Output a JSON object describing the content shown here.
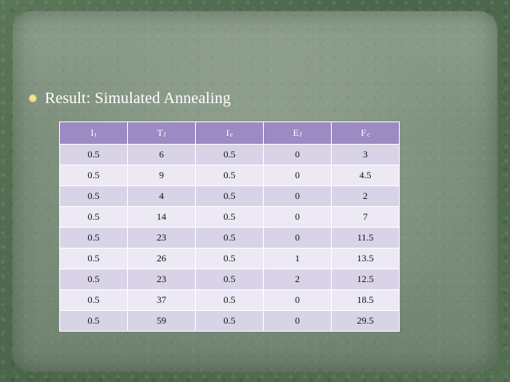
{
  "slide": {
    "title": "Result: Simulated Annealing"
  },
  "table": {
    "columns": [
      {
        "main": "I",
        "sub": "t"
      },
      {
        "main": "T",
        "sub": "f"
      },
      {
        "main": "I",
        "sub": "e"
      },
      {
        "main": "E",
        "sub": "f"
      },
      {
        "main": "F",
        "sub": "c"
      }
    ],
    "rows": [
      [
        "0.5",
        "6",
        "0.5",
        "0",
        "3"
      ],
      [
        "0.5",
        "9",
        "0.5",
        "0",
        "4.5"
      ],
      [
        "0.5",
        "4",
        "0.5",
        "0",
        "2"
      ],
      [
        "0.5",
        "14",
        "0.5",
        "0",
        "7"
      ],
      [
        "0.5",
        "23",
        "0.5",
        "0",
        "11.5"
      ],
      [
        "0.5",
        "26",
        "0.5",
        "1",
        "13.5"
      ],
      [
        "0.5",
        "23",
        "0.5",
        "2",
        "12.5"
      ],
      [
        "0.5",
        "37",
        "0.5",
        "0",
        "18.5"
      ],
      [
        "0.5",
        "59",
        "0.5",
        "0",
        "29.5"
      ]
    ]
  },
  "colors": {
    "background_green": "#4f6a4e",
    "panel_green": "#7c8f7b",
    "bullet_yellow": "#f2e38e",
    "header_purple": "#9c8ac3",
    "row_light_purple": "#d9d3e8",
    "row_lighter_purple": "#ece8f4"
  }
}
